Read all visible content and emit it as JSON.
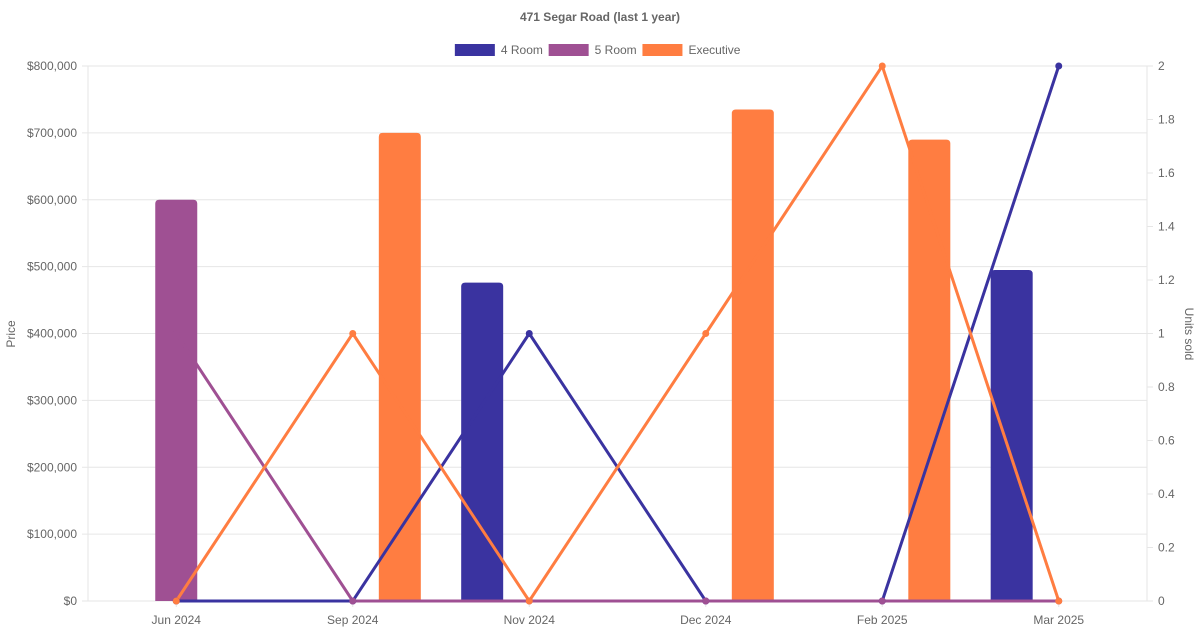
{
  "chart_data": {
    "type": "bar",
    "title": "471 Segar Road (last 1 year)",
    "categories": [
      "Jun 2024",
      "Sep 2024",
      "Nov 2024",
      "Dec 2024",
      "Feb 2025",
      "Mar 2025"
    ],
    "ylabel": "Price",
    "y2label": "Units sold",
    "ylim": [
      0,
      800000
    ],
    "y2lim": [
      0,
      2
    ],
    "yticks": [
      "$0",
      "$100,000",
      "$200,000",
      "$300,000",
      "$400,000",
      "$500,000",
      "$600,000",
      "$700,000",
      "$800,000"
    ],
    "y2ticks": [
      "0",
      "0.2",
      "0.4",
      "0.6",
      "0.8",
      "1",
      "1.2",
      "1.4",
      "1.6",
      "1.8",
      "2"
    ],
    "grid": true,
    "legend_position": "top",
    "series": [
      {
        "name": "4 Room",
        "color": "#3a33a0",
        "price": [
          null,
          null,
          476000,
          null,
          null,
          495000
        ],
        "units": [
          0,
          0,
          1,
          0,
          0,
          2
        ]
      },
      {
        "name": "5 Room",
        "color": "#9f5093",
        "price": [
          600000,
          null,
          null,
          null,
          null,
          null
        ],
        "units": [
          1,
          0,
          0,
          0,
          0,
          0
        ]
      },
      {
        "name": "Executive",
        "color": "#ff7d41",
        "price": [
          null,
          700000,
          null,
          735000,
          690000,
          null
        ],
        "units": [
          0,
          1,
          0,
          1,
          2,
          0
        ]
      }
    ]
  }
}
